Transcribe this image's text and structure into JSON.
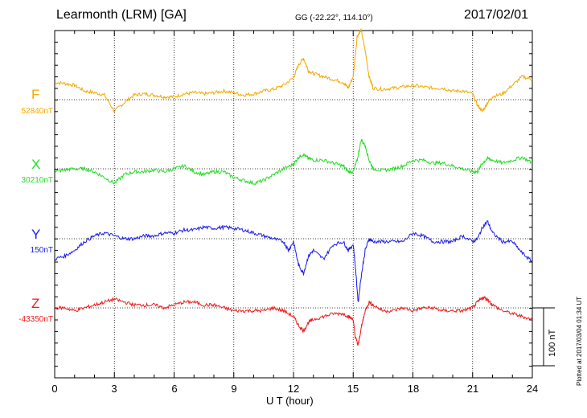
{
  "header": {
    "station": "Learmonth (LRM)  [GA]",
    "coords": "GG (-22.22°, 114.10°)",
    "date": "2017/02/01"
  },
  "footer": {
    "plotted": "Plotted at 2017/03/04 01:34 UT",
    "scale": "100 nT"
  },
  "chart_data": {
    "type": "line",
    "xlabel": "U T (hour)",
    "xlim": [
      0,
      24
    ],
    "xticks": [
      "0",
      "3",
      "6",
      "9",
      "12",
      "15",
      "18",
      "21",
      "24"
    ],
    "scale_nT": 100,
    "series": [
      {
        "name": "F",
        "baseline_label": "52840nT",
        "color": "#f5a800",
        "x": [
          0,
          0.5,
          1,
          1.5,
          2,
          2.5,
          3,
          3.5,
          4,
          4.5,
          5,
          5.5,
          6,
          6.5,
          7,
          7.5,
          8,
          8.5,
          9,
          9.5,
          10,
          10.5,
          11,
          11.5,
          12,
          12.25,
          12.5,
          12.75,
          13,
          13.5,
          14,
          14.5,
          14.75,
          15,
          15.2,
          15.4,
          15.6,
          15.8,
          16,
          16.5,
          17,
          17.5,
          18,
          18.5,
          19,
          19.5,
          20,
          20.5,
          21,
          21.25,
          21.5,
          21.75,
          22,
          22.5,
          23,
          23.5,
          24
        ],
        "values": [
          30,
          28,
          25,
          15,
          12,
          8,
          -20,
          -5,
          8,
          10,
          8,
          5,
          5,
          10,
          12,
          10,
          12,
          15,
          12,
          8,
          10,
          15,
          18,
          25,
          38,
          60,
          72,
          50,
          45,
          40,
          35,
          30,
          20,
          40,
          110,
          120,
          85,
          40,
          20,
          18,
          20,
          22,
          25,
          22,
          20,
          20,
          15,
          15,
          10,
          -10,
          -20,
          -5,
          5,
          10,
          25,
          40,
          35
        ]
      },
      {
        "name": "X",
        "baseline_label": "30210nT",
        "color": "#22dd22",
        "x": [
          0,
          0.5,
          1,
          1.5,
          2,
          2.5,
          3,
          3.5,
          4,
          4.5,
          5,
          5.5,
          6,
          6.5,
          7,
          7.5,
          8,
          8.5,
          9,
          9.5,
          10,
          10.5,
          11,
          11.5,
          12,
          12.25,
          12.5,
          12.75,
          13,
          13.5,
          14,
          14.5,
          14.75,
          15,
          15.2,
          15.4,
          15.6,
          15.8,
          16,
          16.5,
          17,
          17.5,
          18,
          18.5,
          19,
          19.5,
          20,
          20.5,
          21,
          21.25,
          21.5,
          21.75,
          22,
          22.5,
          23,
          23.5,
          24
        ],
        "values": [
          -5,
          -2,
          0,
          0,
          -5,
          -15,
          -25,
          -10,
          -5,
          -5,
          -2,
          -5,
          0,
          5,
          -5,
          -10,
          -5,
          -5,
          -15,
          -20,
          -25,
          -20,
          -10,
          0,
          8,
          20,
          25,
          18,
          15,
          15,
          10,
          5,
          -5,
          -5,
          15,
          50,
          40,
          15,
          0,
          -3,
          0,
          5,
          15,
          15,
          10,
          10,
          5,
          0,
          -5,
          -5,
          10,
          18,
          15,
          10,
          15,
          20,
          10
        ]
      },
      {
        "name": "Y",
        "baseline_label": "150nT",
        "color": "#1a1aee",
        "x": [
          0,
          0.5,
          1,
          1.5,
          2,
          2.5,
          3,
          3.5,
          4,
          4.5,
          5,
          5.5,
          6,
          6.5,
          7,
          7.5,
          8,
          8.5,
          9,
          9.5,
          10,
          10.5,
          11,
          11.5,
          11.75,
          12,
          12.25,
          12.5,
          12.75,
          13,
          13.5,
          14,
          14.5,
          14.75,
          15,
          15.1,
          15.25,
          15.4,
          15.6,
          15.8,
          16,
          16.5,
          17,
          17.5,
          18,
          18.5,
          19,
          19.5,
          20,
          20.5,
          21,
          21.25,
          21.5,
          21.75,
          22,
          22.5,
          23,
          23.5,
          24
        ],
        "values": [
          -35,
          -30,
          -20,
          -5,
          5,
          10,
          5,
          0,
          0,
          5,
          5,
          10,
          10,
          15,
          15,
          20,
          18,
          20,
          18,
          15,
          10,
          5,
          0,
          -5,
          -20,
          -5,
          -45,
          -60,
          -30,
          -20,
          -35,
          -10,
          -5,
          -20,
          -10,
          -45,
          -110,
          -65,
          -20,
          0,
          -5,
          -5,
          -5,
          -5,
          10,
          5,
          -5,
          -5,
          -5,
          5,
          -5,
          0,
          20,
          30,
          10,
          -5,
          -5,
          -25,
          -40
        ]
      },
      {
        "name": "Z",
        "baseline_label": "-43350nT",
        "color": "#ee1a1a",
        "x": [
          0,
          0.5,
          1,
          1.5,
          2,
          2.5,
          3,
          3.5,
          4,
          4.5,
          5,
          5.5,
          6,
          6.5,
          7,
          7.5,
          8,
          8.5,
          9,
          9.5,
          10,
          10.5,
          11,
          11.5,
          12,
          12.25,
          12.5,
          12.75,
          13,
          13.5,
          14,
          14.5,
          14.75,
          15,
          15.1,
          15.25,
          15.4,
          15.6,
          15.8,
          16,
          16.5,
          17,
          17.5,
          18,
          18.5,
          19,
          19.5,
          20,
          20.5,
          21,
          21.25,
          21.5,
          21.75,
          22,
          22.5,
          23,
          23.5,
          24
        ],
        "values": [
          0,
          0,
          -5,
          0,
          5,
          10,
          15,
          10,
          5,
          5,
          5,
          0,
          5,
          10,
          10,
          5,
          5,
          0,
          -5,
          -5,
          -5,
          -5,
          0,
          -5,
          -15,
          -30,
          -40,
          -25,
          -20,
          -15,
          -10,
          -10,
          -15,
          -20,
          -50,
          -65,
          -35,
          -5,
          10,
          5,
          -5,
          -5,
          0,
          -5,
          0,
          0,
          -5,
          -5,
          -5,
          0,
          10,
          18,
          15,
          5,
          -5,
          -10,
          -15,
          -20
        ]
      }
    ]
  }
}
